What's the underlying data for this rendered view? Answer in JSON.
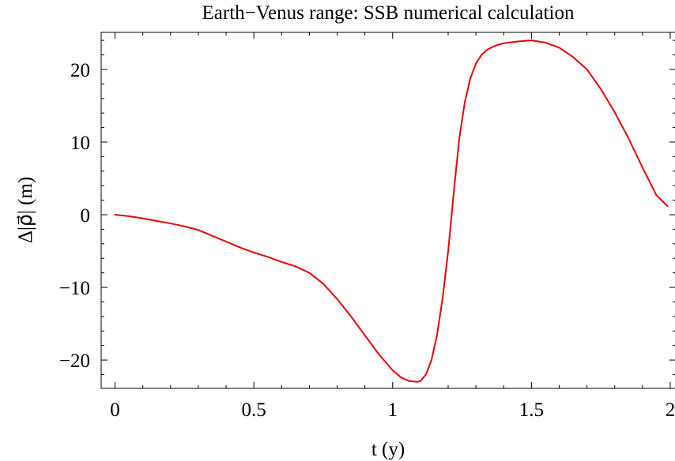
{
  "chart_data": {
    "type": "line",
    "title": "Earth−Venus range: SSB numerical calculation",
    "xlabel": "t (y)",
    "ylabel": "Δ|ρ⃗| (m)",
    "xlim": [
      -0.05,
      2.02
    ],
    "ylim": [
      -23.9,
      25.1
    ],
    "x_ticks": [
      0,
      0.5,
      1,
      1.5,
      2
    ],
    "x_tick_labels": [
      "0",
      "0.5",
      "1",
      "1.5",
      "2"
    ],
    "y_ticks": [
      -20,
      -10,
      0,
      10,
      20
    ],
    "y_tick_labels": [
      "−20",
      "−10",
      "0",
      "10",
      "20"
    ],
    "x_minor_step": 0.1,
    "y_minor_step": 2,
    "grid": false,
    "series": [
      {
        "color": "#e8000b",
        "x": [
          0,
          0.05,
          0.1,
          0.15,
          0.2,
          0.25,
          0.3,
          0.35,
          0.4,
          0.45,
          0.5,
          0.55,
          0.6,
          0.65,
          0.7,
          0.75,
          0.8,
          0.85,
          0.9,
          0.95,
          1.0,
          1.03,
          1.06,
          1.09,
          1.1,
          1.12,
          1.14,
          1.16,
          1.18,
          1.2,
          1.22,
          1.24,
          1.26,
          1.28,
          1.3,
          1.32,
          1.34,
          1.36,
          1.38,
          1.4,
          1.45,
          1.5,
          1.55,
          1.6,
          1.65,
          1.7,
          1.75,
          1.8,
          1.85,
          1.9,
          1.95,
          1.99
        ],
        "y": [
          0,
          -0.2,
          -0.5,
          -0.85,
          -1.2,
          -1.6,
          -2.1,
          -2.9,
          -3.7,
          -4.5,
          -5.2,
          -5.8,
          -6.5,
          -7.1,
          -8.0,
          -9.5,
          -11.6,
          -14.0,
          -16.6,
          -19.2,
          -21.4,
          -22.4,
          -22.9,
          -23.0,
          -22.9,
          -22.0,
          -20.0,
          -16.5,
          -11.5,
          -5.0,
          3.0,
          10.5,
          15.5,
          18.8,
          20.8,
          22.0,
          22.7,
          23.1,
          23.4,
          23.6,
          23.85,
          24.0,
          23.7,
          23.0,
          21.7,
          20.0,
          17.3,
          14.1,
          10.5,
          6.5,
          2.7,
          1.2
        ]
      }
    ]
  }
}
